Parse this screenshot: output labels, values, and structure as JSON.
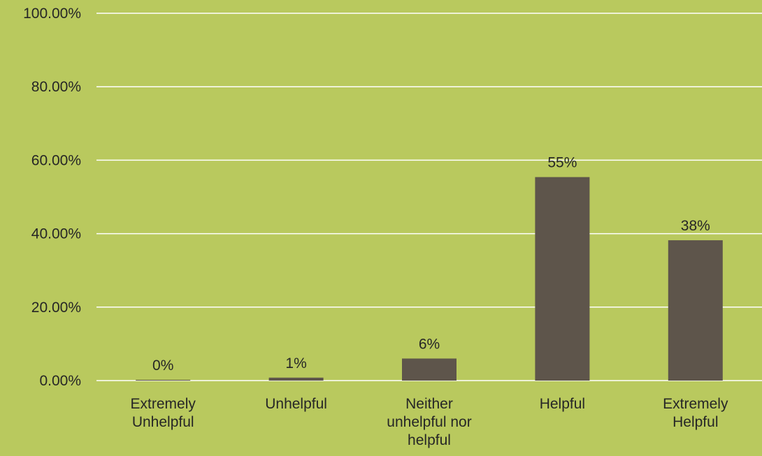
{
  "chart_data": {
    "type": "bar",
    "categories": [
      [
        "Extremely",
        "Unhelpful"
      ],
      [
        "Unhelpful"
      ],
      [
        "Neither",
        "unhelpful nor",
        "helpful"
      ],
      [
        "Helpful"
      ],
      [
        "Extremely",
        "Helpful"
      ]
    ],
    "values": [
      0.2,
      0.8,
      6,
      55.4,
      38.2
    ],
    "data_labels": [
      "0%",
      "1%",
      "6%",
      "55%",
      "38%"
    ],
    "y_ticks": [
      {
        "value": 0,
        "label": "0.00%"
      },
      {
        "value": 20,
        "label": "20.00%"
      },
      {
        "value": 40,
        "label": "40.00%"
      },
      {
        "value": 60,
        "label": "60.00%"
      },
      {
        "value": 80,
        "label": "80.00%"
      },
      {
        "value": 100,
        "label": "100.00%"
      }
    ],
    "ylim": [
      0,
      100
    ],
    "grid": true,
    "legend": "none",
    "title": "",
    "xlabel": "",
    "ylabel": "",
    "colors": {
      "background": "#b9c95e",
      "bar": "#5e554b",
      "gridline": "#ffffff",
      "text": "#262626"
    }
  }
}
